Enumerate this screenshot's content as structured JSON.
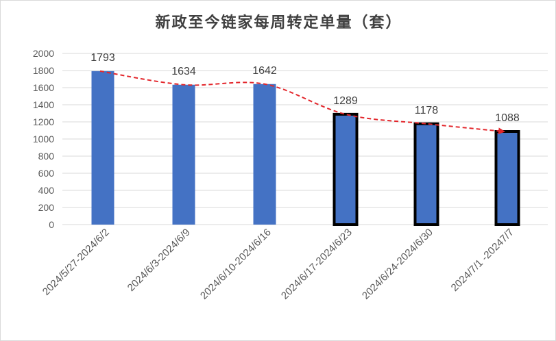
{
  "chart_data": {
    "type": "bar",
    "title": "新政至今链家每周转定单量（套）",
    "categories": [
      "2024/5/27-2024/6/2",
      "2024/6/3-2024/6/9",
      "2024/6/10-2024/6/16",
      "2024/6/17-2024/6/23",
      "2024/6/24-2024/6/30",
      "2024/7/1 -20247/7"
    ],
    "values": [
      1793,
      1634,
      1642,
      1289,
      1178,
      1088
    ],
    "value_labels": [
      "1793",
      "1634",
      "1642",
      "1289",
      "1178",
      "1088"
    ],
    "y_ticks": [
      "0",
      "200",
      "400",
      "600",
      "800",
      "1000",
      "1200",
      "1400",
      "1600",
      "1800",
      "2000"
    ],
    "ylim": [
      0,
      2000
    ],
    "grid": true,
    "highlighted_bars": [
      3,
      4,
      5
    ],
    "trend_line": {
      "style": "dashed",
      "arrow": true
    },
    "colors": {
      "bar": "#4472c4",
      "highlight_border": "#000000",
      "trend": "#e3262b",
      "grid": "#d9d9d9",
      "title": "#404040",
      "text": "#595959"
    }
  }
}
